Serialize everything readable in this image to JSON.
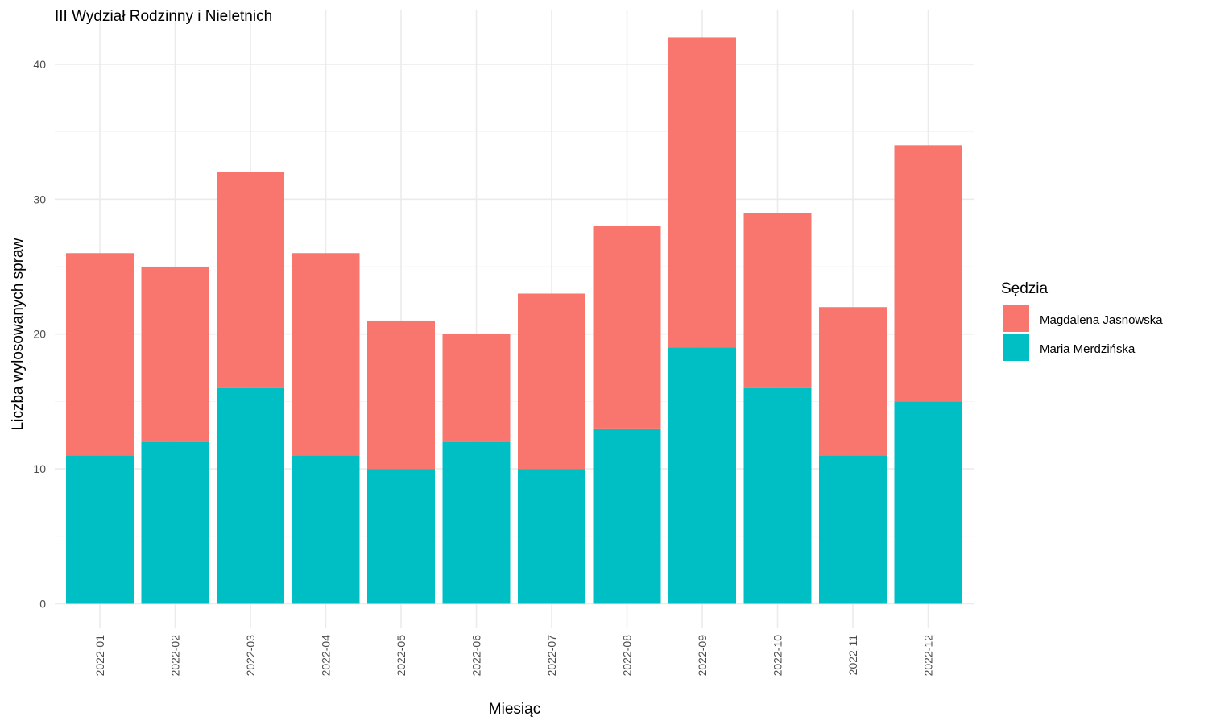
{
  "chart_data": {
    "type": "bar",
    "stacked": true,
    "title": "III Wydział Rodzinny i Nieletnich",
    "xlabel": "Miesiąc",
    "ylabel": "Liczba wylosowanych spraw",
    "categories": [
      "2022-01",
      "2022-02",
      "2022-03",
      "2022-04",
      "2022-05",
      "2022-06",
      "2022-07",
      "2022-08",
      "2022-09",
      "2022-10",
      "2022-11",
      "2022-12"
    ],
    "series": [
      {
        "name": "Maria Merdzińska",
        "color": "#00BFC4",
        "values": [
          11,
          12,
          16,
          11,
          10,
          12,
          10,
          13,
          19,
          16,
          11,
          15
        ]
      },
      {
        "name": "Magdalena Jasnowska",
        "color": "#F8766D",
        "values": [
          15,
          13,
          16,
          15,
          11,
          8,
          13,
          15,
          23,
          13,
          11,
          19
        ]
      }
    ],
    "ylim": [
      0,
      42
    ],
    "yticks": [
      0,
      10,
      20,
      30,
      40
    ],
    "grid": true,
    "legend": {
      "title": "Sędzia",
      "position": "right",
      "entries": [
        "Magdalena Jasnowska",
        "Maria Merdzińska"
      ]
    }
  }
}
